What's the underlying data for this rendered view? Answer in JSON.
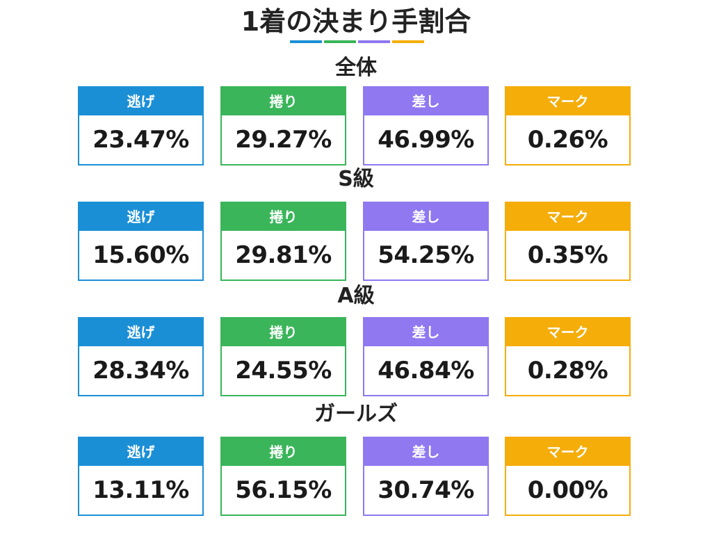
{
  "title": "1着の決まり手割合",
  "colors": {
    "nige": "#1b8fd6",
    "makuri": "#3ab55a",
    "sashi": "#8f78f0",
    "mark": "#f5ad0a"
  },
  "labels": {
    "nige": "逃げ",
    "makuri": "捲り",
    "sashi": "差し",
    "mark": "マーク"
  },
  "sections": [
    {
      "title": "全体",
      "values": {
        "nige": "23.47%",
        "makuri": "29.27%",
        "sashi": "46.99%",
        "mark": "0.26%"
      }
    },
    {
      "title": "S級",
      "values": {
        "nige": "15.60%",
        "makuri": "29.81%",
        "sashi": "54.25%",
        "mark": "0.35%"
      }
    },
    {
      "title": "A級",
      "values": {
        "nige": "28.34%",
        "makuri": "24.55%",
        "sashi": "46.84%",
        "mark": "0.28%"
      }
    },
    {
      "title": "ガールズ",
      "values": {
        "nige": "13.11%",
        "makuri": "56.15%",
        "sashi": "30.74%",
        "mark": "0.00%"
      }
    }
  ]
}
